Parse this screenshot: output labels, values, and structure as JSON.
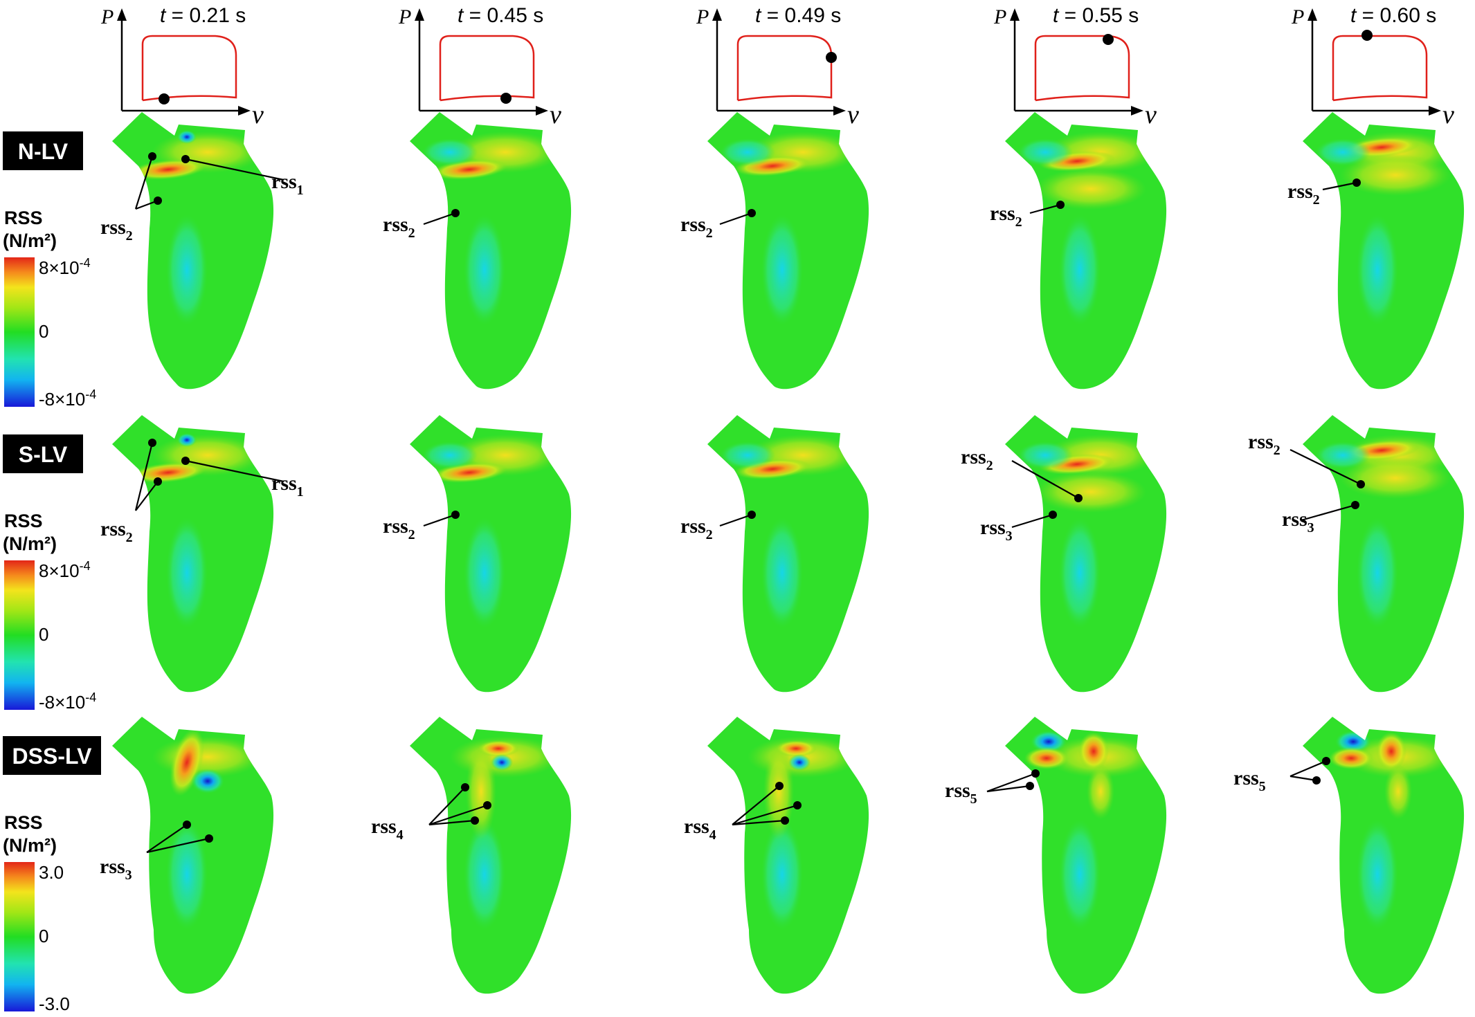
{
  "pv_axis": {
    "p_label": "P",
    "v_label": "v"
  },
  "time_prefix": "t = ",
  "time_unit": " s",
  "columns": [
    {
      "time": "0.21",
      "marker_phase": "filling"
    },
    {
      "time": "0.45",
      "marker_phase": "end-filling"
    },
    {
      "time": "0.49",
      "marker_phase": "isovolumic-contraction"
    },
    {
      "time": "0.55",
      "marker_phase": "ejection"
    },
    {
      "time": "0.60",
      "marker_phase": "early-ejection"
    }
  ],
  "rows": [
    {
      "label": "N-LV",
      "colorbar": {
        "title_line1": "RSS",
        "title_line2": "(N/m²)",
        "max": "8×10-4",
        "mid": "0",
        "min": "-8×10-4"
      }
    },
    {
      "label": "S-LV",
      "colorbar": {
        "title_line1": "RSS",
        "title_line2": "(N/m²)",
        "max": "8×10-4",
        "mid": "0",
        "min": "-8×10-4"
      }
    },
    {
      "label": "DSS-LV",
      "colorbar": {
        "title_line1": "RSS",
        "title_line2": "(N/m²)",
        "max": "3.0",
        "mid": "0",
        "min": "-3.0"
      }
    }
  ],
  "colormap": [
    "#1a1adb",
    "#13c8f0",
    "#35e84a",
    "#2ee02a",
    "#9ae61a",
    "#f6e81e",
    "#f5861c",
    "#e8261c"
  ],
  "annotations": {
    "r0c0": [
      "rss1",
      "rss2"
    ],
    "r0c1": [
      "rss2"
    ],
    "r0c2": [
      "rss2"
    ],
    "r0c3": [
      "rss2"
    ],
    "r0c4": [
      "rss2"
    ],
    "r1c0": [
      "rss1",
      "rss2"
    ],
    "r1c1": [
      "rss2"
    ],
    "r1c2": [
      "rss2"
    ],
    "r1c3": [
      "rss2",
      "rss3"
    ],
    "r1c4": [
      "rss2",
      "rss3"
    ],
    "r2c0": [
      "rss3"
    ],
    "r2c1": [
      "rss4"
    ],
    "r2c2": [
      "rss4"
    ],
    "r2c3": [
      "rss5"
    ],
    "r2c4": [
      "rss5"
    ]
  },
  "labels": {
    "rss": "rss",
    "rss1": "1",
    "rss2": "2",
    "rss3": "3",
    "rss4": "4",
    "rss5": "5"
  }
}
